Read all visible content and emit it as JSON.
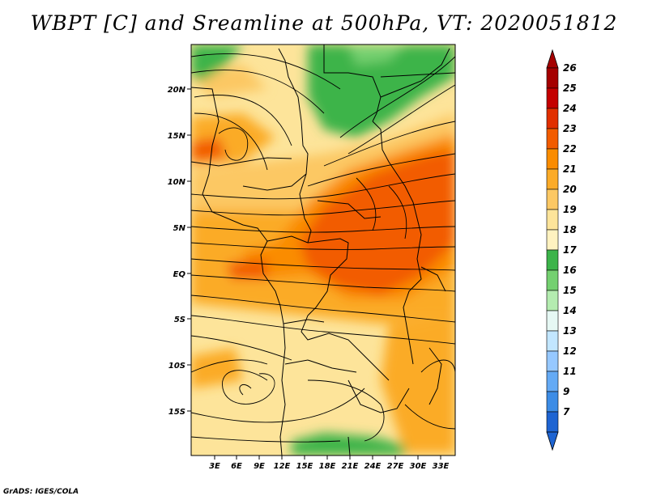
{
  "title": "WBPT [C] and Sreamline at 500hPa, VT: 2020051812",
  "credit": "GrADS: IGES/COLA",
  "map": {
    "x_ticks": [
      "3E",
      "6E",
      "9E",
      "12E",
      "15E",
      "18E",
      "21E",
      "24E",
      "27E",
      "30E",
      "33E"
    ],
    "y_ticks": [
      "20N",
      "15N",
      "10N",
      "5N",
      "EQ",
      "5S",
      "10S",
      "15S"
    ]
  },
  "colorbar": {
    "labels": [
      "26",
      "25",
      "24",
      "23",
      "22",
      "21",
      "20",
      "19",
      "18",
      "17",
      "16",
      "15",
      "14",
      "13",
      "12",
      "11",
      "9",
      "7"
    ],
    "colors": [
      "#a50000",
      "#c40000",
      "#e12f00",
      "#f25c00",
      "#fa8c00",
      "#fbab28",
      "#fcc864",
      "#fde49a",
      "#fff2c0",
      "#3cb44a",
      "#74d070",
      "#b4ecb0",
      "#e6f8f4",
      "#c2e6ff",
      "#96c8ff",
      "#64aaf5",
      "#3c8ce6",
      "#1e64d2"
    ]
  }
}
